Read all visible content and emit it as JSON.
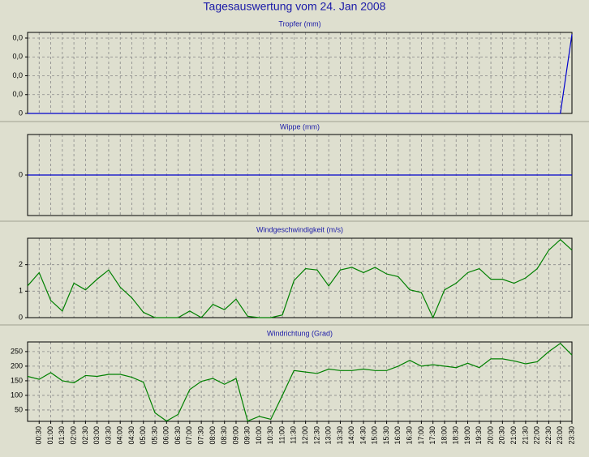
{
  "title": "Tagesauswertung vom 24. Jan 2008",
  "chart_data": [
    {
      "type": "line",
      "title": "Tropfer (mm)",
      "color": "#0000cc",
      "grid": true,
      "ylim": [
        0,
        0.043
      ],
      "yticks": [
        0,
        {
          "value": 0.01,
          "label": "0,0"
        },
        {
          "value": 0.02,
          "label": "0,0"
        },
        {
          "value": 0.03,
          "label": "0,0"
        },
        {
          "value": 0.04,
          "label": "0,0"
        }
      ],
      "values": [
        0,
        0,
        0,
        0,
        0,
        0,
        0,
        0,
        0,
        0,
        0,
        0,
        0,
        0,
        0,
        0,
        0,
        0,
        0,
        0,
        0,
        0,
        0,
        0,
        0,
        0,
        0,
        0,
        0,
        0,
        0,
        0,
        0,
        0,
        0,
        0,
        0,
        0,
        0,
        0,
        0,
        0,
        0,
        0,
        0,
        0,
        0,
        0.042
      ]
    },
    {
      "type": "line",
      "title": "Wippe (mm)",
      "color": "#0000cc",
      "grid": true,
      "ylim": [
        -1,
        1
      ],
      "yticks": [
        0
      ],
      "values": [
        0,
        0,
        0,
        0,
        0,
        0,
        0,
        0,
        0,
        0,
        0,
        0,
        0,
        0,
        0,
        0,
        0,
        0,
        0,
        0,
        0,
        0,
        0,
        0,
        0,
        0,
        0,
        0,
        0,
        0,
        0,
        0,
        0,
        0,
        0,
        0,
        0,
        0,
        0,
        0,
        0,
        0,
        0,
        0,
        0,
        0,
        0,
        0
      ]
    },
    {
      "type": "line",
      "title": "Windgeschwindigkeit (m/s)",
      "color": "#008000",
      "grid": true,
      "ylim": [
        0,
        3
      ],
      "yticks": [
        0,
        1,
        2
      ],
      "values": [
        1.2,
        1.7,
        0.65,
        0.25,
        1.3,
        1.05,
        1.45,
        1.8,
        1.15,
        0.75,
        0.2,
        0,
        0,
        0,
        0.25,
        0,
        0.5,
        0.3,
        0.7,
        0.05,
        0,
        0,
        0.1,
        1.4,
        1.85,
        1.8,
        1.2,
        1.8,
        1.9,
        1.7,
        1.9,
        1.65,
        1.55,
        1.05,
        0.95,
        0,
        1.05,
        1.3,
        1.7,
        1.85,
        1.45,
        1.45,
        1.3,
        1.5,
        1.85,
        2.55,
        2.95,
        2.55
      ]
    },
    {
      "type": "line",
      "title": "Windrichtung (Grad)",
      "color": "#008000",
      "grid": true,
      "ylim": [
        11,
        283
      ],
      "yticks": [
        50,
        100,
        150,
        200,
        250
      ],
      "values": [
        165,
        155,
        178,
        150,
        143,
        168,
        165,
        172,
        172,
        162,
        145,
        40,
        12,
        35,
        120,
        148,
        158,
        138,
        158,
        12,
        28,
        18,
        100,
        185,
        180,
        175,
        190,
        185,
        185,
        190,
        185,
        185,
        200,
        220,
        200,
        205,
        200,
        195,
        210,
        195,
        225,
        225,
        218,
        208,
        215,
        250,
        278,
        238
      ],
      "categories": [
        null,
        "00:30",
        "01:00",
        "01:30",
        "02:00",
        "02:30",
        "03:00",
        "03:30",
        "04:00",
        "04:30",
        "05:00",
        "05:30",
        "06:00",
        "06:30",
        "07:00",
        "07:30",
        "08:00",
        "08:30",
        "09:00",
        "09:30",
        "10:00",
        "10:30",
        "11:00",
        "11:30",
        "12:00",
        "12:30",
        "13:00",
        "13:30",
        "14:00",
        "14:30",
        "15:00",
        "15:30",
        "16:00",
        "16:30",
        "17:00",
        "17:30",
        "18:00",
        "18:30",
        "19:00",
        "19:30",
        "20:00",
        "20:30",
        "21:00",
        "21:30",
        "22:00",
        "22:30",
        "23:00",
        "23:30"
      ]
    }
  ]
}
